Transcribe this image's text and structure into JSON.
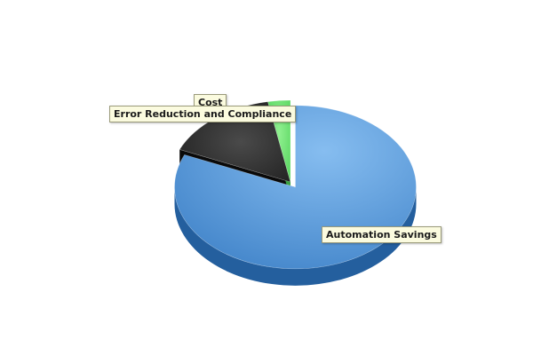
{
  "chart_data": {
    "type": "pie",
    "title": "",
    "categories": [
      "Automation Savings",
      "Error Reduction and Compliance",
      "Cost"
    ],
    "values": [
      81.5,
      15.5,
      3.0
    ],
    "colors": [
      "#4a8fd4",
      "#2a2a2a",
      "#62d96a"
    ],
    "exploded": "Automation Savings",
    "three_d": true,
    "legend": "none"
  }
}
